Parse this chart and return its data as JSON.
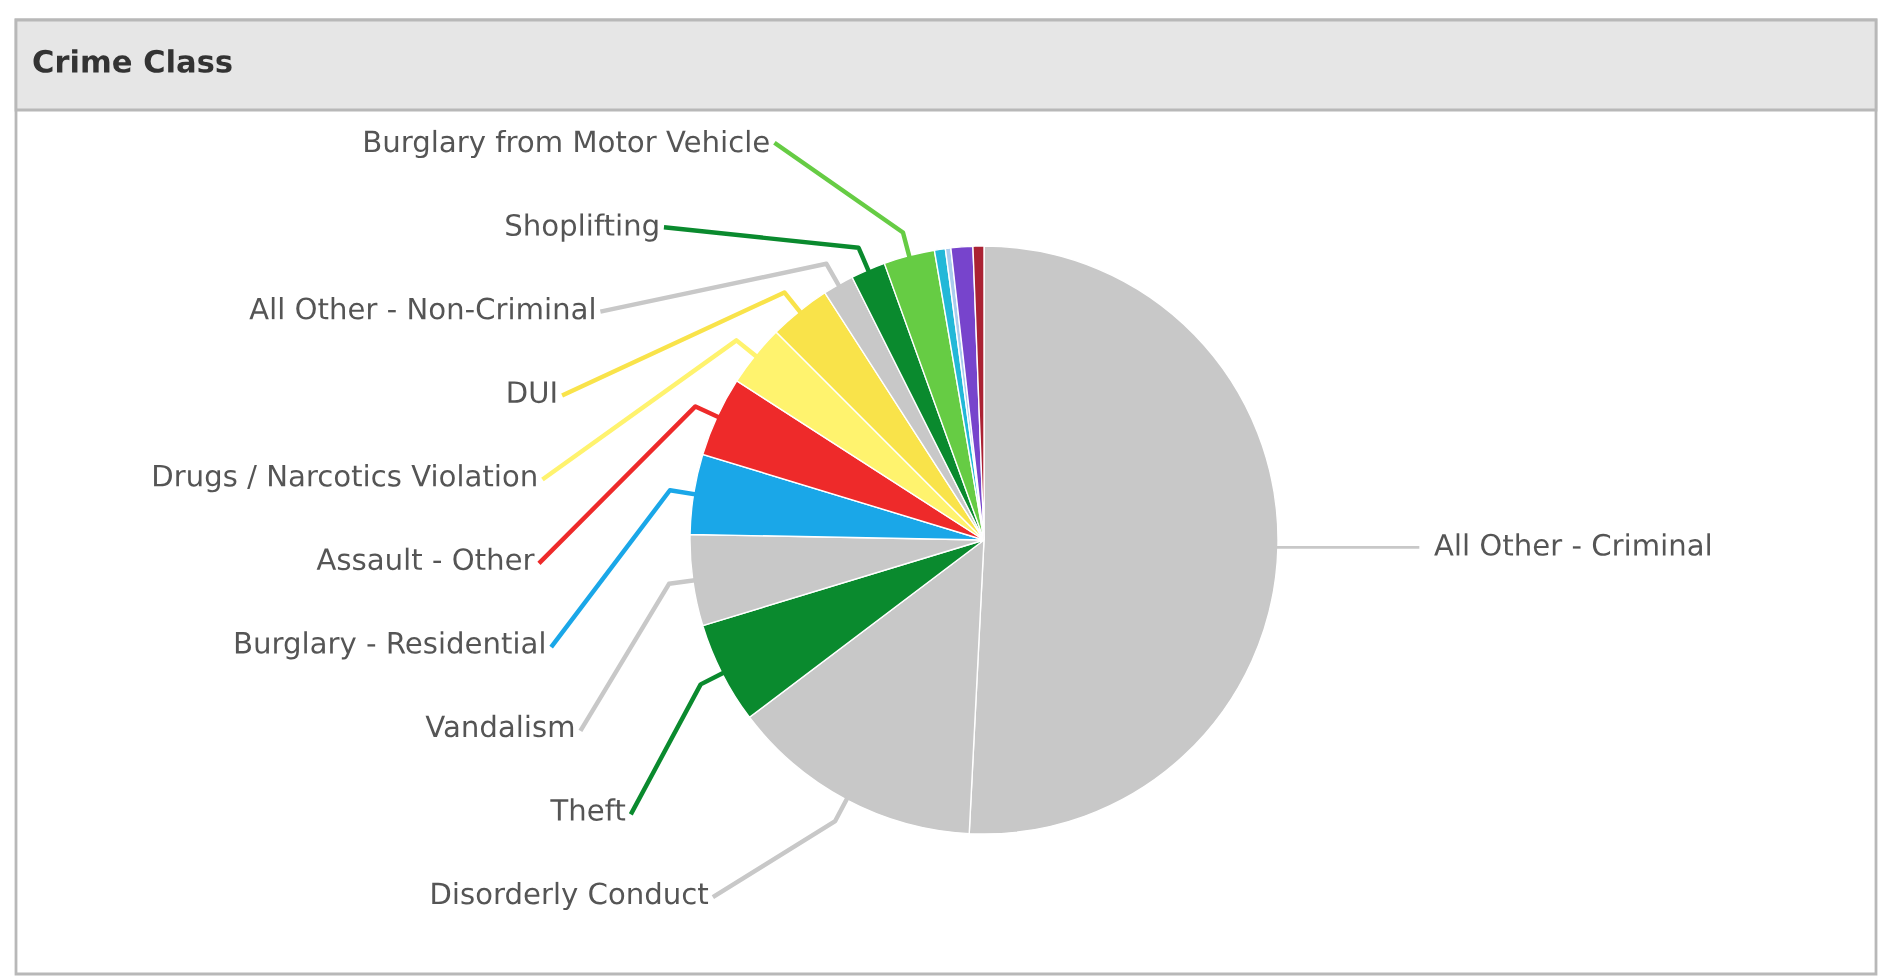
{
  "chart_data": {
    "type": "pie",
    "title": "Crime Class",
    "categories": [
      "All Other - Criminal",
      "Disorderly Conduct",
      "Theft",
      "Vandalism",
      "Burglary - Residential",
      "Assault - Other",
      "Drugs / Narcotics Violation",
      "DUI",
      "All Other - Non-Criminal",
      "Shoplifting",
      "Burglary from Motor Vehicle",
      null,
      null,
      null,
      null
    ],
    "values": [
      50.8,
      13.9,
      5.6,
      5.0,
      4.4,
      4.4,
      3.4,
      3.4,
      1.7,
      1.9,
      2.8,
      0.6,
      0.3,
      1.2,
      0.6
    ],
    "colors": [
      "#c8c8c8",
      "#c8c8c8",
      "#0a8a2e",
      "#c8c8c8",
      "#1aa7e8",
      "#ee2a2a",
      "#fff36e",
      "#f9e34a",
      "#c8c8c8",
      "#0a8a2e",
      "#66cc44",
      "#22b8d8",
      "#aaccee",
      "#7744cc",
      "#aa2233"
    ]
  }
}
